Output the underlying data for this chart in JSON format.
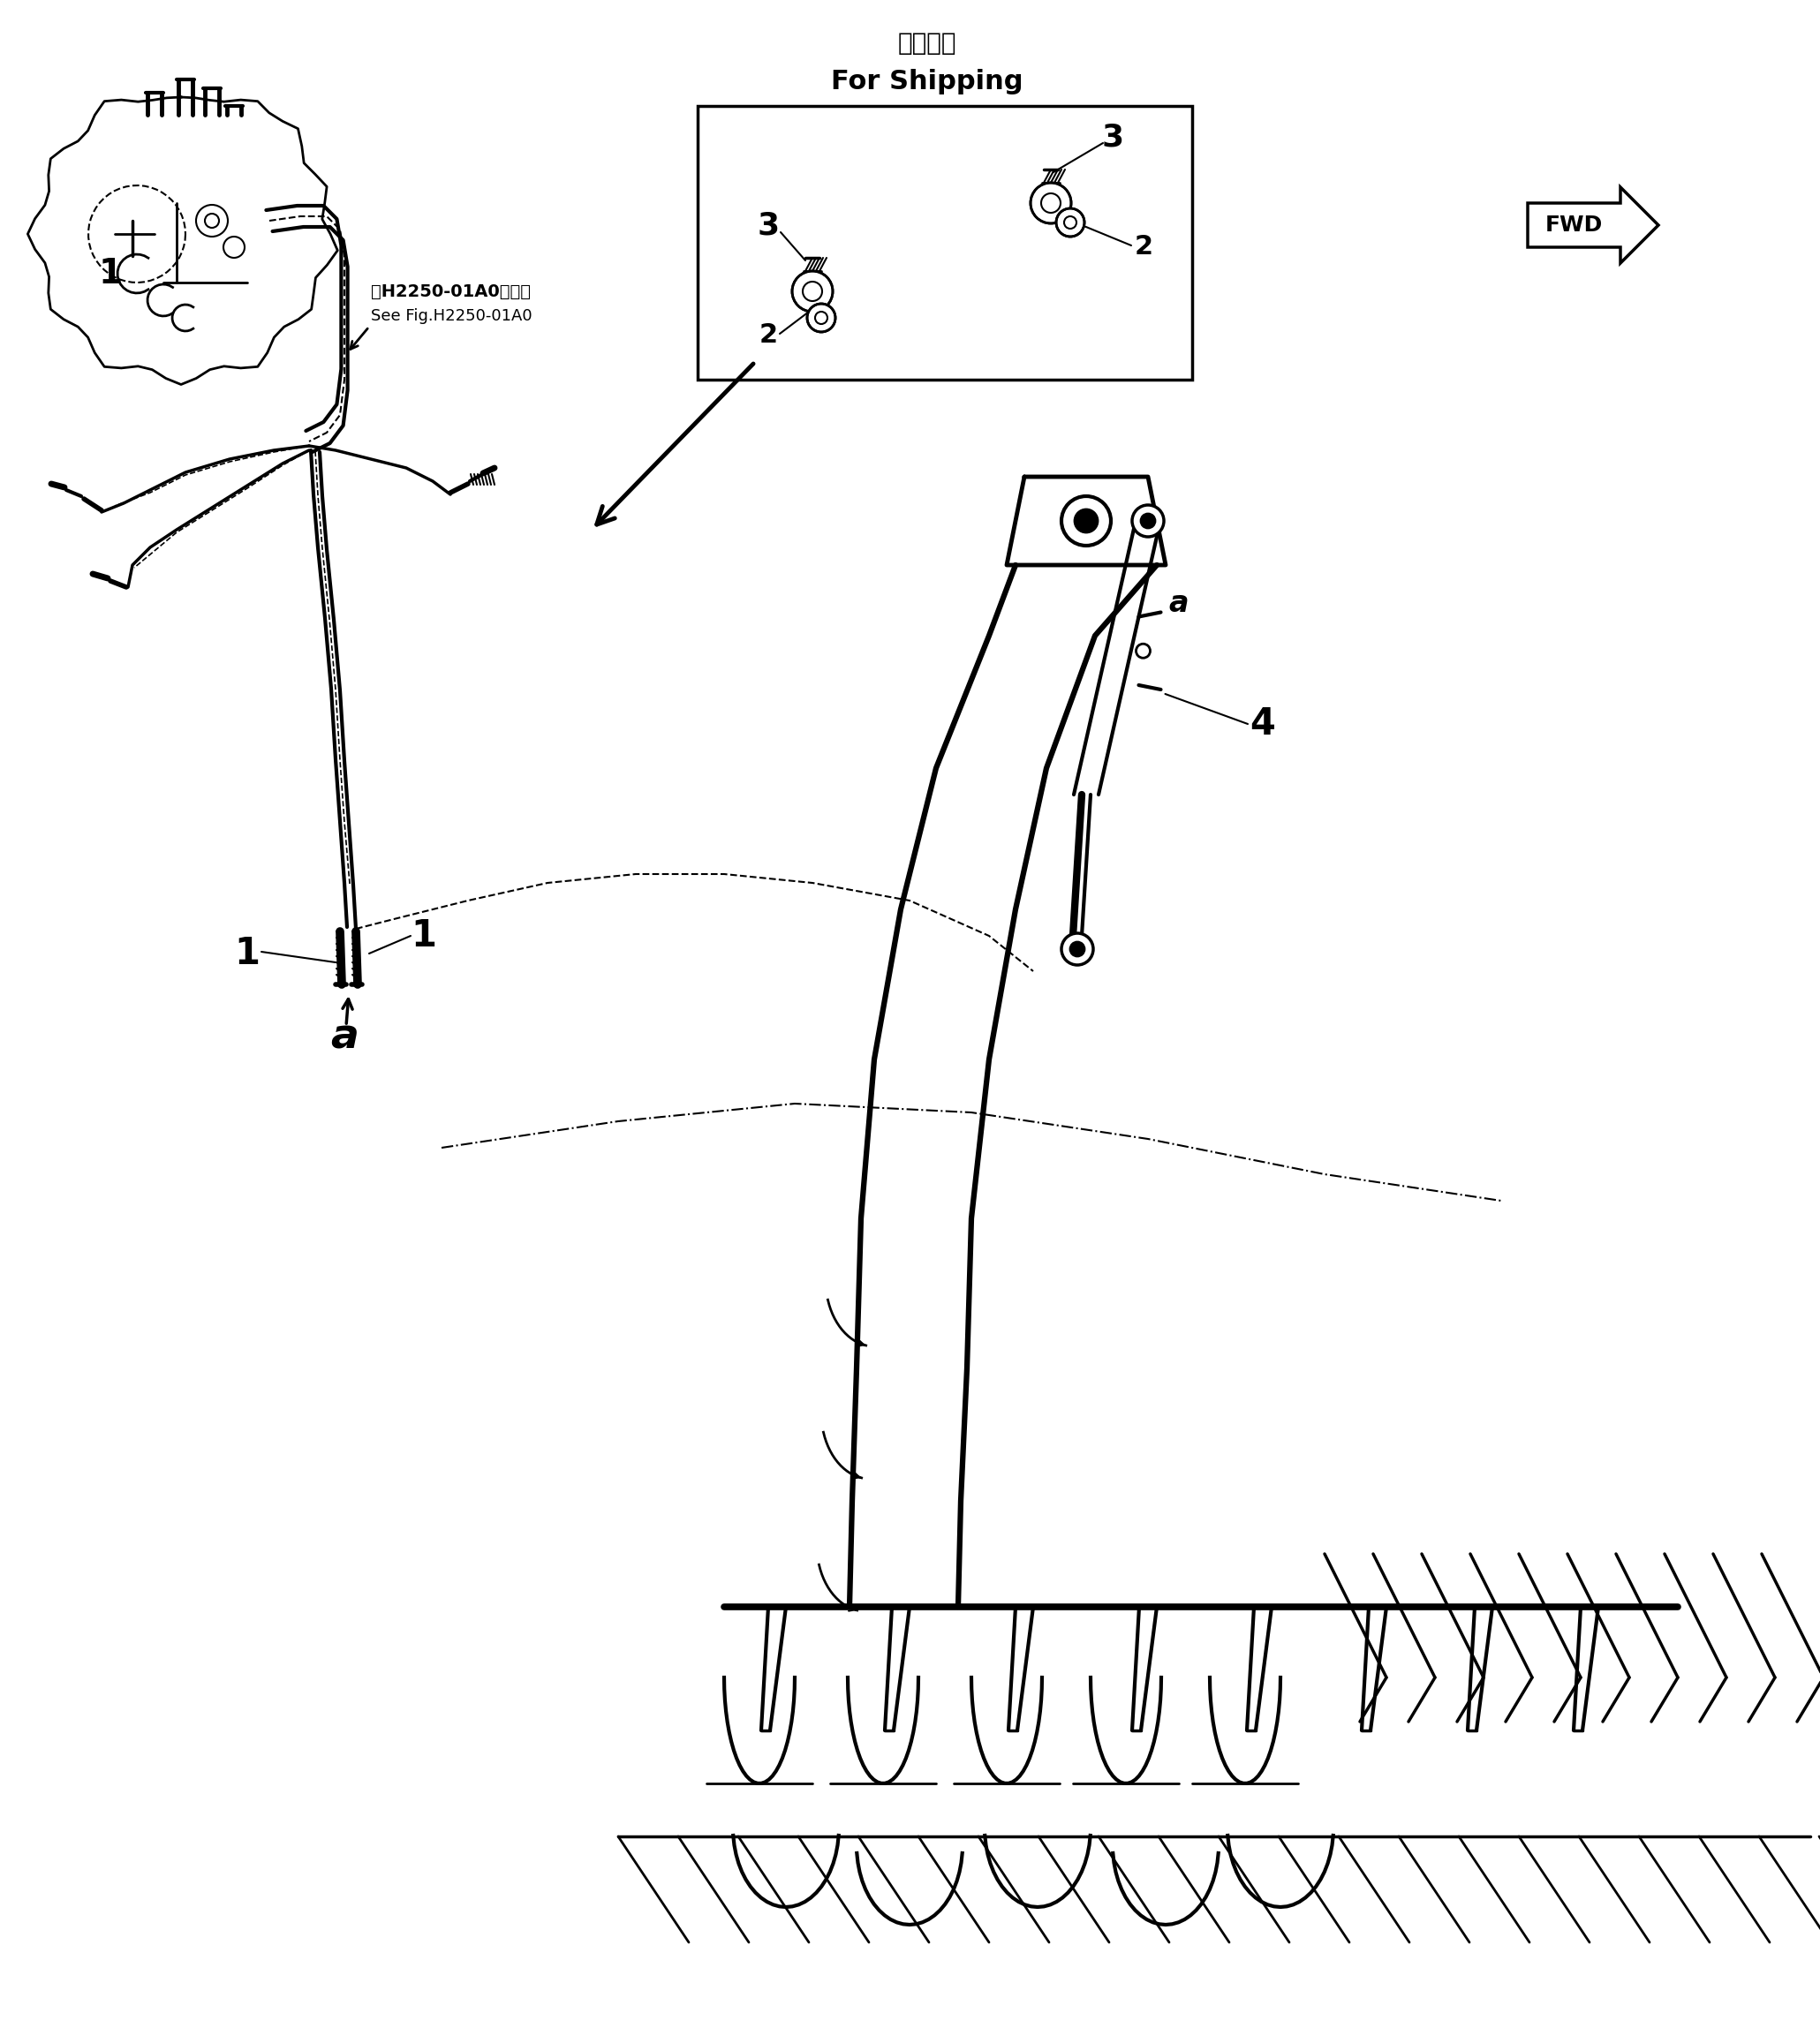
{
  "background_color": "#ffffff",
  "fig_width": 20.61,
  "fig_height": 22.97,
  "title_japanese": "運搜部品",
  "title_english": "For Shipping",
  "see_fig_line1": "第H2250-01A0図参照",
  "see_fig_line2": "See Fig.H2250-01A0",
  "fwd_label": "FWD",
  "label_1": "1",
  "label_4": "4",
  "label_a": "a",
  "label_2": "2",
  "label_3": "3"
}
